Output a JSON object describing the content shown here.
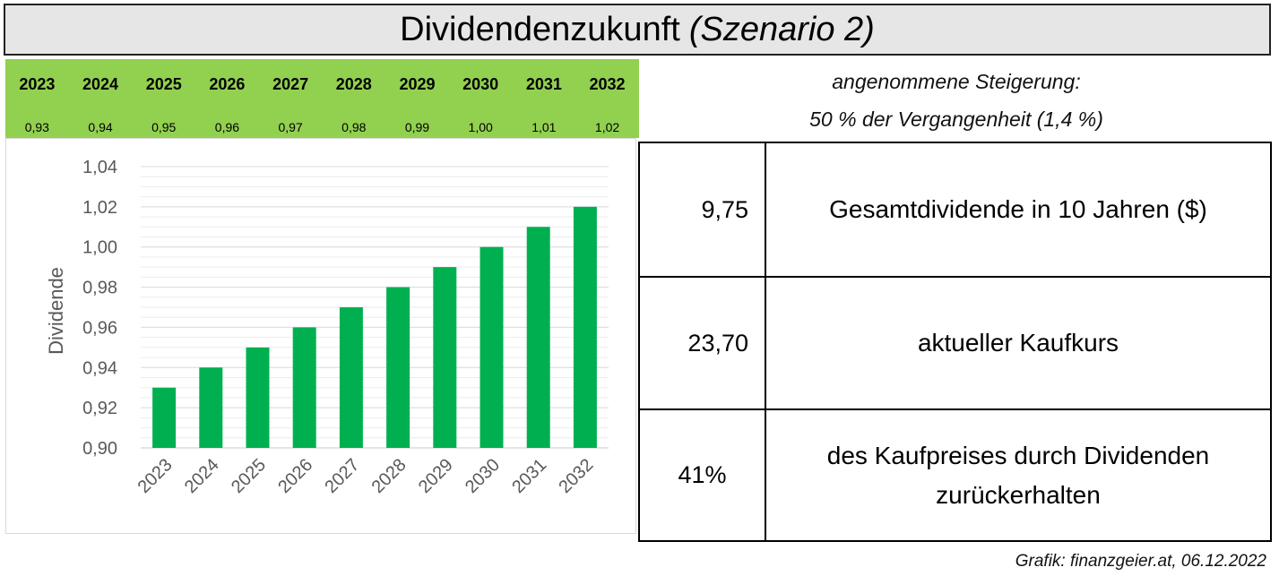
{
  "title": {
    "main": "Dividendenzukunft",
    "sub": "(Szenario 2)"
  },
  "band": {
    "years": [
      "2023",
      "2024",
      "2025",
      "2026",
      "2027",
      "2028",
      "2029",
      "2030",
      "2031",
      "2032"
    ],
    "values": [
      "0,93",
      "0,94",
      "0,95",
      "0,96",
      "0,97",
      "0,98",
      "0,99",
      "1,00",
      "1,01",
      "1,02"
    ]
  },
  "note": {
    "line1": "angenommene Steigerung:",
    "line2": "50 % der Vergangenheit (1,4 %)"
  },
  "info": [
    {
      "value": "9,75",
      "label": "Gesamtdividende in 10 Jahren ($)"
    },
    {
      "value": "23,70",
      "label": "aktueller Kaufkurs"
    },
    {
      "value": "41%",
      "label": "des Kaufpreises durch Dividenden zurückerhalten"
    }
  ],
  "credit": "Grafik: finanzgeier.at, 06.12.2022",
  "chart_data": {
    "type": "bar",
    "categories": [
      "2023",
      "2024",
      "2025",
      "2026",
      "2027",
      "2028",
      "2029",
      "2030",
      "2031",
      "2032"
    ],
    "values": [
      0.93,
      0.94,
      0.95,
      0.96,
      0.97,
      0.98,
      0.99,
      1.0,
      1.01,
      1.02
    ],
    "ylabel": "Dividende",
    "xlabel": "",
    "ylim": [
      0.9,
      1.04
    ],
    "yticks": [
      "0,90",
      "0,92",
      "0,94",
      "0,96",
      "0,98",
      "1,00",
      "1,02",
      "1,04"
    ],
    "bar_color": "#00b050",
    "grid": true,
    "legend": "none"
  }
}
